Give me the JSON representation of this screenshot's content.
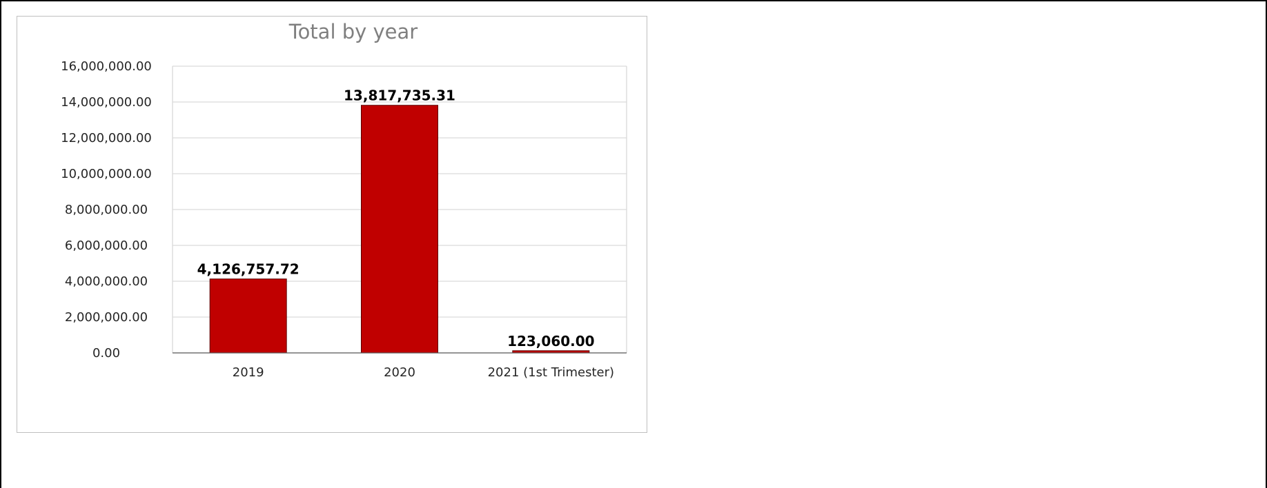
{
  "chart_data": {
    "type": "bar",
    "title": "Total by year",
    "xlabel": "",
    "ylabel": "",
    "categories": [
      "2019",
      "2020",
      "2021 (1st Trimester)"
    ],
    "values": [
      4126757.72,
      13817735.31,
      123060.0
    ],
    "data_labels": [
      "4,126,757.72",
      "13,817,735.31",
      "123,060.00"
    ],
    "ylim": [
      0,
      16000000
    ],
    "yticks": [
      0,
      2000000,
      4000000,
      6000000,
      8000000,
      10000000,
      12000000,
      14000000,
      16000000
    ],
    "ytick_labels": [
      "0.00",
      "2,000,000.00",
      "4,000,000.00",
      "6,000,000.00",
      "8,000,000.00",
      "10,000,000.00",
      "12,000,000.00",
      "14,000,000.00",
      "16,000,000.00"
    ],
    "grid": true,
    "legend": "none",
    "bar_color": "#c00000",
    "bar_edge_color": "#5a0000"
  }
}
